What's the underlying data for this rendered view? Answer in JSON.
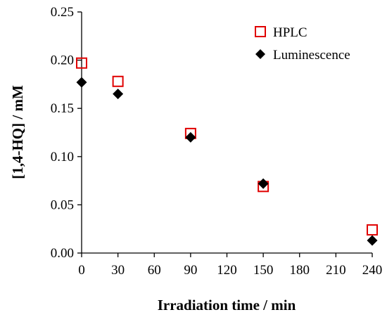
{
  "chart_data": {
    "type": "scatter",
    "xlabel": "Irradiation time / min",
    "ylabel": "[1,4-HQ] / mM",
    "xlim": [
      0,
      240
    ],
    "ylim": [
      0,
      0.25
    ],
    "x_ticks": [
      "0",
      "30",
      "60",
      "90",
      "120",
      "150",
      "180",
      "210",
      "240"
    ],
    "y_ticks": [
      "0.00",
      "0.05",
      "0.10",
      "0.15",
      "0.20",
      "0.25"
    ],
    "legend_position": "top-right",
    "grid": false,
    "series": [
      {
        "name": "HPLC",
        "marker": "open-square",
        "color": "#e00000",
        "x": [
          0,
          30,
          90,
          150,
          240
        ],
        "y": [
          0.197,
          0.178,
          0.124,
          0.069,
          0.024
        ]
      },
      {
        "name": "Luminescence",
        "marker": "filled-diamond",
        "color": "#000000",
        "x": [
          0,
          30,
          90,
          150,
          240
        ],
        "y": [
          0.177,
          0.165,
          0.12,
          0.072,
          0.013
        ]
      }
    ]
  }
}
